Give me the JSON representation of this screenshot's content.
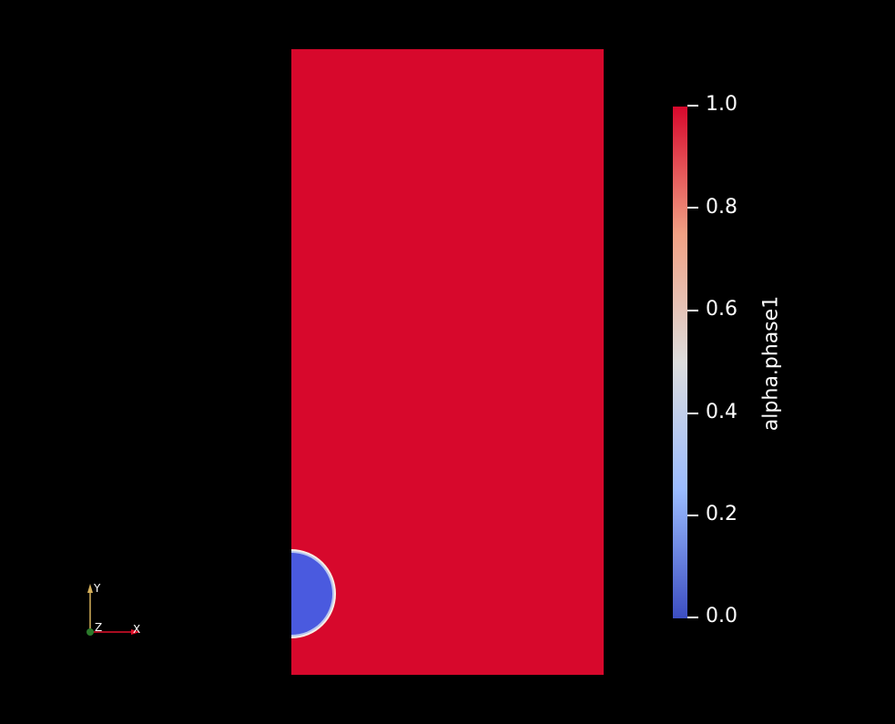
{
  "scalar_bar": {
    "title": "alpha.phase1",
    "ticks": [
      "1.0",
      "0.8",
      "0.6",
      "0.4",
      "0.2",
      "0.0"
    ],
    "range": [
      0.0,
      1.0
    ],
    "colors": {
      "high": "#d7082c",
      "upper_mid": "#f2a184",
      "mid": "#dddddd",
      "lower_mid": "#9abbff",
      "low": "#3c4ec2"
    }
  },
  "field": {
    "background_color": "#d7082c",
    "bubble_color": "#4a5adf",
    "bubble_edge_color": "#f7f0e6"
  },
  "orientation_axes": {
    "x_label": "X",
    "y_label": "Y",
    "z_label": "Z",
    "x_color": "#e0112b",
    "y_color": "#d6b05a",
    "z_color": "#2b7a2b"
  }
}
